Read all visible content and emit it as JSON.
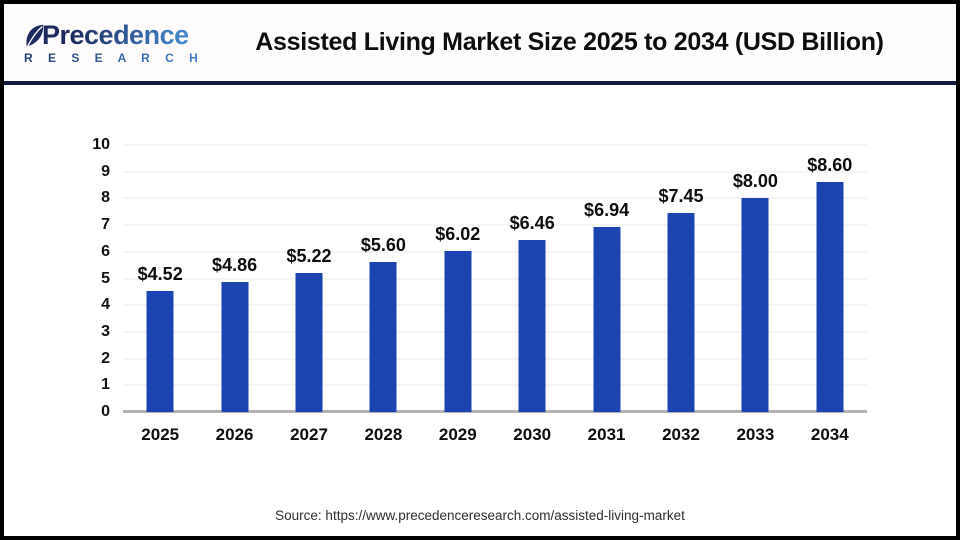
{
  "header": {
    "brand_name": "Precedence",
    "brand_sub": "R E S E A R C H",
    "title": "Assisted Living Market Size 2025 to 2034 (USD Billion)"
  },
  "chart_data": {
    "type": "bar",
    "title": "Assisted Living Market Size 2025 to 2034 (USD Billion)",
    "categories": [
      "2025",
      "2026",
      "2027",
      "2028",
      "2029",
      "2030",
      "2031",
      "2032",
      "2033",
      "2034"
    ],
    "values": [
      4.52,
      4.86,
      5.22,
      5.6,
      6.02,
      6.46,
      6.94,
      7.45,
      8.0,
      8.6
    ],
    "value_labels": [
      "$4.52",
      "$4.86",
      "$5.22",
      "$5.60",
      "$6.02",
      "$6.46",
      "$6.94",
      "$7.45",
      "$8.00",
      "$8.60"
    ],
    "xlabel": "",
    "ylabel": "",
    "ylim": [
      0,
      10
    ],
    "yticks": [
      0,
      1,
      2,
      3,
      4,
      5,
      6,
      7,
      8,
      9,
      10
    ],
    "grid": "horizontal",
    "legend": "none",
    "bar_color": "#1b44b1"
  },
  "footer": {
    "source": "Source: https://www.precedenceresearch.com/assisted-living-market"
  },
  "colors": {
    "bar": "#1b44b1",
    "header_divider": "#141b3d",
    "frame_border": "#000000",
    "gridline": "#ebebeb",
    "baseline": "#b3b3b5",
    "logo_navy": "#1c2a5e",
    "logo_blue": "#4487cd"
  }
}
